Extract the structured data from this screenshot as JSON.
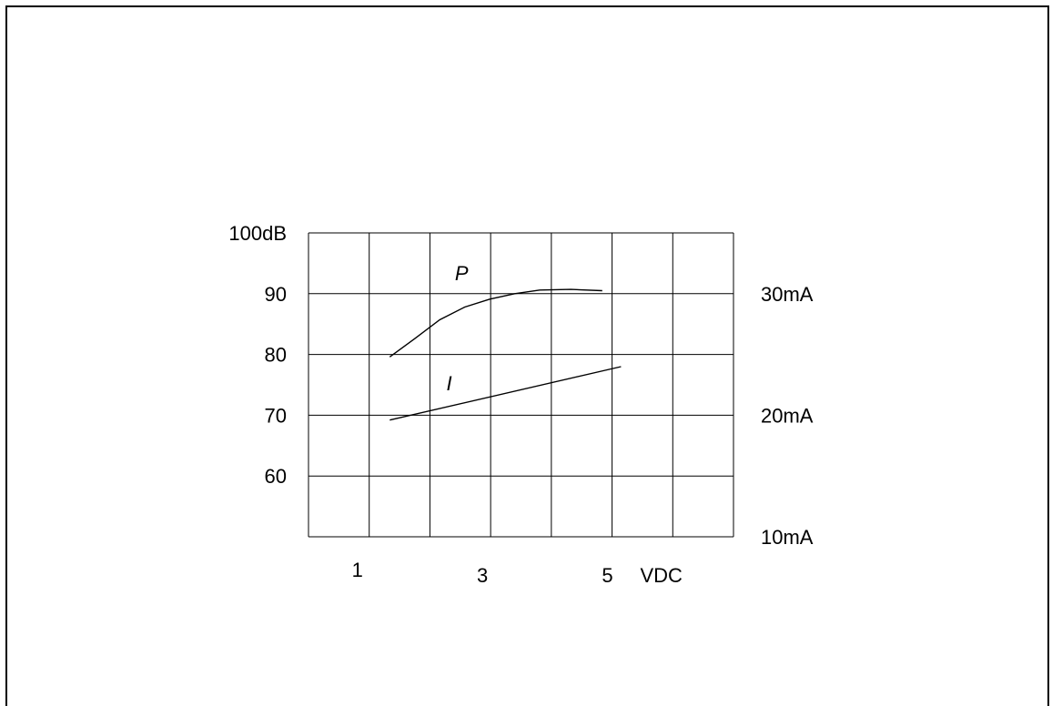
{
  "chart_data": {
    "type": "line",
    "title": "",
    "x_tick_labels": [
      "1",
      "3",
      "5"
    ],
    "x_ticks": [
      1,
      3,
      5
    ],
    "x_unit_label": "VDC",
    "xlim": [
      0.1,
      6.9
    ],
    "y_tick_labels_left": [
      "100dB",
      "90",
      "80",
      "70",
      "60"
    ],
    "y_ticks_left": [
      100,
      90,
      80,
      70,
      60
    ],
    "ylim": [
      50,
      100
    ],
    "y_tick_labels_right": [
      "30mA",
      "20mA",
      "10mA"
    ],
    "y_ticks_right": [
      30,
      20,
      10
    ],
    "y_right_scale": {
      "from_left": [
        90,
        70,
        50
      ],
      "to_right": [
        30,
        20,
        10
      ]
    },
    "grid": true,
    "series": [
      {
        "name": "P",
        "axis": "left",
        "points": [
          [
            1.4,
            79.6
          ],
          [
            1.8,
            82.6
          ],
          [
            2.2,
            85.7
          ],
          [
            2.6,
            87.8
          ],
          [
            3.0,
            89.1
          ],
          [
            3.4,
            90.0
          ],
          [
            3.8,
            90.6
          ],
          [
            4.3,
            90.7
          ],
          [
            4.8,
            90.5
          ]
        ]
      },
      {
        "name": "I",
        "axis": "left",
        "points": [
          [
            1.4,
            69.2
          ],
          [
            5.1,
            78.0
          ]
        ]
      }
    ]
  }
}
